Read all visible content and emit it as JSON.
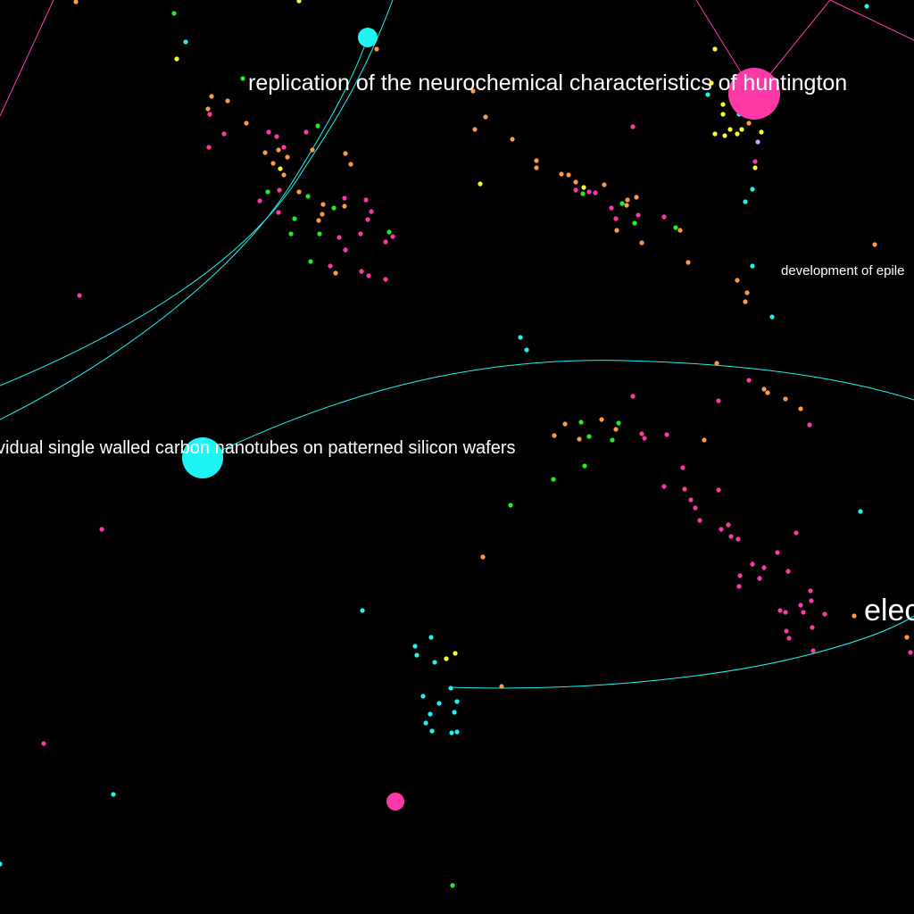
{
  "colors": {
    "background": "#000000",
    "cyan": "#1ff3f3",
    "pink": "#ff3aa8",
    "orange": "#ff9a4a",
    "green": "#22ee22",
    "yellow": "#ffff33",
    "lavender": "#c8a8ff",
    "label": "#ffffff"
  },
  "labels": {
    "huntington": "replication of the neurochemical characteristics of huntington",
    "nanotubes": "vidual single walled carbon nanotubes on patterned silicon wafers",
    "epilepsy": "development of epile",
    "elec": "elec"
  }
}
